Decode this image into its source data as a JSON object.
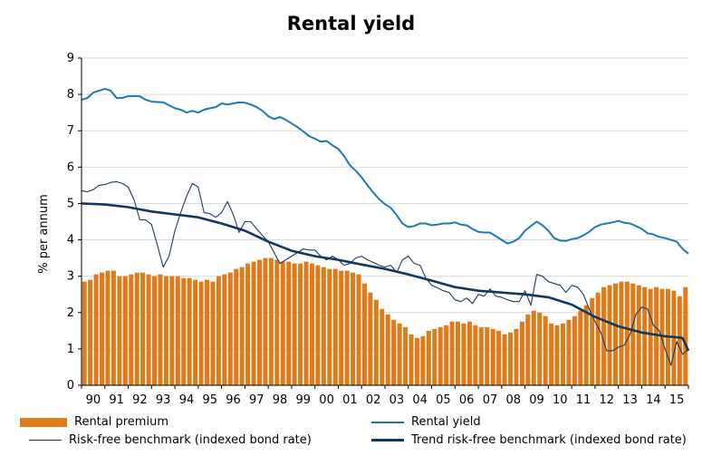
{
  "chart_data": {
    "type": "bar+line",
    "title": "Rental yield",
    "ylabel": "% per annum",
    "xlabel": "",
    "ylim": [
      0,
      9
    ],
    "yticks": [
      "0",
      "1",
      "2",
      "3",
      "4",
      "5",
      "6",
      "7",
      "8",
      "9"
    ],
    "xticks": [
      "90",
      "91",
      "92",
      "93",
      "94",
      "95",
      "96",
      "97",
      "98",
      "99",
      "00",
      "01",
      "02",
      "03",
      "04",
      "05",
      "06",
      "07",
      "08",
      "09",
      "10",
      "11",
      "12",
      "13",
      "14",
      "15"
    ],
    "xlim": [
      1990,
      2016
    ],
    "colors": {
      "rental_premium": "#e07b1a",
      "rental_yield": "#1f78b4",
      "risk_free": "#1c3a5e",
      "trend": "#12385e"
    },
    "series": [
      {
        "name": "Rental premium",
        "type": "bar",
        "x_start": 1990.0,
        "x_step": 0.25,
        "values": [
          2.85,
          2.9,
          3.05,
          3.1,
          3.15,
          3.15,
          3.0,
          3.0,
          3.05,
          3.1,
          3.1,
          3.05,
          3.0,
          3.05,
          3.0,
          3.0,
          3.0,
          2.95,
          2.95,
          2.9,
          2.85,
          2.9,
          2.85,
          3.0,
          3.05,
          3.1,
          3.2,
          3.25,
          3.35,
          3.4,
          3.45,
          3.5,
          3.5,
          3.45,
          3.4,
          3.4,
          3.35,
          3.35,
          3.4,
          3.35,
          3.3,
          3.25,
          3.2,
          3.2,
          3.15,
          3.15,
          3.1,
          3.05,
          2.8,
          2.55,
          2.35,
          2.1,
          1.95,
          1.8,
          1.7,
          1.6,
          1.4,
          1.3,
          1.35,
          1.5,
          1.55,
          1.6,
          1.65,
          1.75,
          1.75,
          1.7,
          1.75,
          1.65,
          1.6,
          1.6,
          1.55,
          1.5,
          1.4,
          1.45,
          1.55,
          1.75,
          1.95,
          2.05,
          2.0,
          1.9,
          1.7,
          1.65,
          1.7,
          1.8,
          1.9,
          2.05,
          2.2,
          2.4,
          2.55,
          2.7,
          2.75,
          2.8,
          2.85,
          2.85,
          2.8,
          2.75,
          2.7,
          2.65,
          2.7,
          2.65,
          2.65,
          2.6,
          2.45,
          2.7
        ]
      },
      {
        "name": "Rental yield",
        "type": "line",
        "points": [
          [
            1990.0,
            7.85
          ],
          [
            1990.25,
            7.9
          ],
          [
            1990.5,
            8.05
          ],
          [
            1990.75,
            8.1
          ],
          [
            1991.0,
            8.15
          ],
          [
            1991.25,
            8.1
          ],
          [
            1991.5,
            7.9
          ],
          [
            1991.75,
            7.9
          ],
          [
            1992.0,
            7.95
          ],
          [
            1992.5,
            7.95
          ],
          [
            1992.75,
            7.85
          ],
          [
            1993.0,
            7.8
          ],
          [
            1993.5,
            7.78
          ],
          [
            1993.75,
            7.7
          ],
          [
            1994.0,
            7.62
          ],
          [
            1994.25,
            7.58
          ],
          [
            1994.5,
            7.5
          ],
          [
            1994.75,
            7.55
          ],
          [
            1995.0,
            7.5
          ],
          [
            1995.25,
            7.58
          ],
          [
            1995.5,
            7.62
          ],
          [
            1995.75,
            7.65
          ],
          [
            1996.0,
            7.75
          ],
          [
            1996.25,
            7.72
          ],
          [
            1996.5,
            7.75
          ],
          [
            1996.75,
            7.78
          ],
          [
            1997.0,
            7.77
          ],
          [
            1997.25,
            7.72
          ],
          [
            1997.5,
            7.65
          ],
          [
            1997.75,
            7.55
          ],
          [
            1998.0,
            7.4
          ],
          [
            1998.25,
            7.32
          ],
          [
            1998.5,
            7.38
          ],
          [
            1998.75,
            7.3
          ],
          [
            1999.0,
            7.2
          ],
          [
            1999.25,
            7.1
          ],
          [
            1999.5,
            6.98
          ],
          [
            1999.75,
            6.85
          ],
          [
            2000.0,
            6.78
          ],
          [
            2000.25,
            6.7
          ],
          [
            2000.5,
            6.72
          ],
          [
            2000.75,
            6.6
          ],
          [
            2001.0,
            6.5
          ],
          [
            2001.25,
            6.3
          ],
          [
            2001.5,
            6.05
          ],
          [
            2001.75,
            5.9
          ],
          [
            2002.0,
            5.72
          ],
          [
            2002.25,
            5.5
          ],
          [
            2002.5,
            5.3
          ],
          [
            2002.75,
            5.12
          ],
          [
            2003.0,
            4.98
          ],
          [
            2003.25,
            4.88
          ],
          [
            2003.5,
            4.68
          ],
          [
            2003.75,
            4.45
          ],
          [
            2004.0,
            4.35
          ],
          [
            2004.25,
            4.38
          ],
          [
            2004.5,
            4.45
          ],
          [
            2004.75,
            4.45
          ],
          [
            2005.0,
            4.4
          ],
          [
            2005.25,
            4.42
          ],
          [
            2005.5,
            4.45
          ],
          [
            2005.75,
            4.45
          ],
          [
            2006.0,
            4.48
          ],
          [
            2006.25,
            4.42
          ],
          [
            2006.5,
            4.4
          ],
          [
            2006.75,
            4.3
          ],
          [
            2007.0,
            4.22
          ],
          [
            2007.25,
            4.2
          ],
          [
            2007.5,
            4.2
          ],
          [
            2007.75,
            4.1
          ],
          [
            2008.0,
            4.0
          ],
          [
            2008.25,
            3.9
          ],
          [
            2008.5,
            3.95
          ],
          [
            2008.75,
            4.05
          ],
          [
            2009.0,
            4.25
          ],
          [
            2009.25,
            4.38
          ],
          [
            2009.5,
            4.5
          ],
          [
            2009.75,
            4.4
          ],
          [
            2010.0,
            4.25
          ],
          [
            2010.25,
            4.05
          ],
          [
            2010.5,
            3.98
          ],
          [
            2010.75,
            3.97
          ],
          [
            2011.0,
            4.02
          ],
          [
            2011.25,
            4.05
          ],
          [
            2011.5,
            4.12
          ],
          [
            2011.75,
            4.22
          ],
          [
            2012.0,
            4.35
          ],
          [
            2012.25,
            4.42
          ],
          [
            2012.5,
            4.45
          ],
          [
            2012.75,
            4.48
          ],
          [
            2013.0,
            4.52
          ],
          [
            2013.25,
            4.47
          ],
          [
            2013.5,
            4.45
          ],
          [
            2013.75,
            4.38
          ],
          [
            2014.0,
            4.3
          ],
          [
            2014.25,
            4.18
          ],
          [
            2014.5,
            4.15
          ],
          [
            2014.75,
            4.08
          ],
          [
            2015.0,
            4.05
          ],
          [
            2015.25,
            4.0
          ],
          [
            2015.5,
            3.95
          ],
          [
            2015.75,
            3.75
          ],
          [
            2016.0,
            3.62
          ]
        ]
      },
      {
        "name": "Risk-free benchmark (indexed bond rate)",
        "type": "line",
        "points": [
          [
            1990.0,
            5.35
          ],
          [
            1990.25,
            5.32
          ],
          [
            1990.5,
            5.38
          ],
          [
            1990.75,
            5.5
          ],
          [
            1991.0,
            5.52
          ],
          [
            1991.25,
            5.58
          ],
          [
            1991.5,
            5.6
          ],
          [
            1991.75,
            5.55
          ],
          [
            1992.0,
            5.45
          ],
          [
            1992.25,
            5.1
          ],
          [
            1992.5,
            4.55
          ],
          [
            1992.75,
            4.55
          ],
          [
            1993.0,
            4.42
          ],
          [
            1993.25,
            3.85
          ],
          [
            1993.5,
            3.25
          ],
          [
            1993.75,
            3.55
          ],
          [
            1994.0,
            4.25
          ],
          [
            1994.25,
            4.75
          ],
          [
            1994.5,
            5.2
          ],
          [
            1994.75,
            5.55
          ],
          [
            1995.0,
            5.45
          ],
          [
            1995.25,
            4.75
          ],
          [
            1995.5,
            4.72
          ],
          [
            1995.75,
            4.62
          ],
          [
            1996.0,
            4.75
          ],
          [
            1996.25,
            5.05
          ],
          [
            1996.5,
            4.7
          ],
          [
            1996.75,
            4.2
          ],
          [
            1997.0,
            4.5
          ],
          [
            1997.25,
            4.5
          ],
          [
            1997.5,
            4.3
          ],
          [
            1997.75,
            4.12
          ],
          [
            1998.0,
            3.95
          ],
          [
            1998.25,
            3.65
          ],
          [
            1998.5,
            3.35
          ],
          [
            1998.75,
            3.45
          ],
          [
            1999.0,
            3.55
          ],
          [
            1999.25,
            3.65
          ],
          [
            1999.5,
            3.75
          ],
          [
            1999.75,
            3.72
          ],
          [
            2000.0,
            3.72
          ],
          [
            2000.25,
            3.55
          ],
          [
            2000.5,
            3.45
          ],
          [
            2000.75,
            3.55
          ],
          [
            2001.0,
            3.45
          ],
          [
            2001.25,
            3.3
          ],
          [
            2001.5,
            3.35
          ],
          [
            2001.75,
            3.5
          ],
          [
            2002.0,
            3.55
          ],
          [
            2002.25,
            3.45
          ],
          [
            2002.5,
            3.38
          ],
          [
            2002.75,
            3.3
          ],
          [
            2003.0,
            3.25
          ],
          [
            2003.25,
            3.3
          ],
          [
            2003.5,
            3.1
          ],
          [
            2003.75,
            3.45
          ],
          [
            2004.0,
            3.55
          ],
          [
            2004.25,
            3.35
          ],
          [
            2004.5,
            3.3
          ],
          [
            2004.75,
            2.95
          ],
          [
            2005.0,
            2.75
          ],
          [
            2005.25,
            2.68
          ],
          [
            2005.5,
            2.6
          ],
          [
            2005.75,
            2.55
          ],
          [
            2006.0,
            2.35
          ],
          [
            2006.25,
            2.3
          ],
          [
            2006.5,
            2.4
          ],
          [
            2006.75,
            2.25
          ],
          [
            2007.0,
            2.5
          ],
          [
            2007.25,
            2.45
          ],
          [
            2007.5,
            2.65
          ],
          [
            2007.75,
            2.45
          ],
          [
            2008.0,
            2.42
          ],
          [
            2008.25,
            2.35
          ],
          [
            2008.5,
            2.3
          ],
          [
            2008.75,
            2.3
          ],
          [
            2009.0,
            2.6
          ],
          [
            2009.25,
            2.2
          ],
          [
            2009.5,
            3.05
          ],
          [
            2009.75,
            3.0
          ],
          [
            2010.0,
            2.85
          ],
          [
            2010.25,
            2.8
          ],
          [
            2010.5,
            2.75
          ],
          [
            2010.75,
            2.55
          ],
          [
            2011.0,
            2.75
          ],
          [
            2011.25,
            2.7
          ],
          [
            2011.5,
            2.5
          ],
          [
            2011.75,
            2.1
          ],
          [
            2012.0,
            1.75
          ],
          [
            2012.25,
            1.45
          ],
          [
            2012.5,
            0.95
          ],
          [
            2012.75,
            0.95
          ],
          [
            2013.0,
            1.05
          ],
          [
            2013.25,
            1.1
          ],
          [
            2013.5,
            1.4
          ],
          [
            2013.75,
            1.95
          ],
          [
            2014.0,
            2.15
          ],
          [
            2014.25,
            2.1
          ],
          [
            2014.5,
            1.65
          ],
          [
            2014.75,
            1.5
          ],
          [
            2015.0,
            1.0
          ],
          [
            2015.25,
            0.55
          ],
          [
            2015.5,
            1.2
          ],
          [
            2015.75,
            0.85
          ],
          [
            2016.0,
            1.0
          ]
        ]
      },
      {
        "name": "Trend risk-free benchmark (indexed bond rate)",
        "type": "line",
        "points": [
          [
            1990.0,
            5.0
          ],
          [
            1991.0,
            4.97
          ],
          [
            1992.0,
            4.9
          ],
          [
            1993.0,
            4.78
          ],
          [
            1994.0,
            4.7
          ],
          [
            1995.0,
            4.62
          ],
          [
            1996.0,
            4.45
          ],
          [
            1997.0,
            4.25
          ],
          [
            1998.0,
            3.95
          ],
          [
            1999.0,
            3.7
          ],
          [
            2000.0,
            3.55
          ],
          [
            2001.0,
            3.45
          ],
          [
            2002.0,
            3.32
          ],
          [
            2003.0,
            3.2
          ],
          [
            2004.0,
            3.05
          ],
          [
            2005.0,
            2.88
          ],
          [
            2006.0,
            2.7
          ],
          [
            2007.0,
            2.6
          ],
          [
            2008.0,
            2.55
          ],
          [
            2009.0,
            2.5
          ],
          [
            2010.0,
            2.42
          ],
          [
            2011.0,
            2.22
          ],
          [
            2012.0,
            1.88
          ],
          [
            2013.0,
            1.62
          ],
          [
            2014.0,
            1.45
          ],
          [
            2015.0,
            1.35
          ],
          [
            2015.5,
            1.32
          ],
          [
            2015.75,
            1.3
          ],
          [
            2016.0,
            0.95
          ]
        ]
      }
    ],
    "legend": {
      "position": "bottom",
      "rental_premium": "Rental premium",
      "rental_yield": "Rental yield",
      "risk_free": "Risk-free benchmark (indexed bond rate)",
      "trend": "Trend risk-free benchmark (indexed bond rate)"
    }
  }
}
